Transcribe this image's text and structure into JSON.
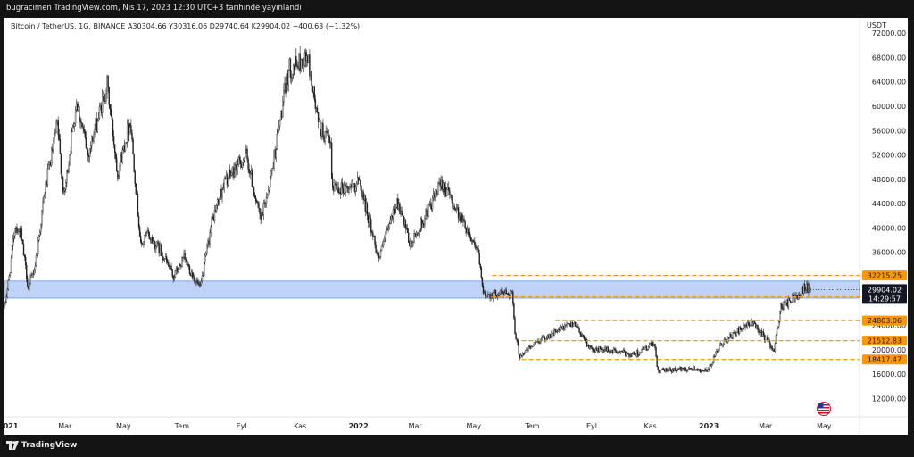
{
  "header": {
    "publish_info": "bugracimen TradingView.com, Nis 17, 2023 12:30 UTC+3 tarihinde yayınlandı"
  },
  "legend": {
    "text": "Bitcoin / TetherUS, 1G, BINANCE  A30304.66  Y30316.06  D29740.64  K29904.02  −400.63 (−1.32%)"
  },
  "footer": {
    "brand": "TradingView"
  },
  "colors": {
    "candle": "#222222",
    "level_line": "#ff9800",
    "zone_fill": "#a9c4f5",
    "zone_border": "#7fa6ee",
    "label_bg": "#ff9800",
    "price_label_bg": "#131722"
  },
  "chart_data": {
    "type": "candlestick",
    "currency_label": "USDT",
    "y_ticks": [
      "72000.00",
      "68000.00",
      "64000.00",
      "60000.00",
      "56000.00",
      "52000.00",
      "48000.00",
      "44000.00",
      "40000.00",
      "36000.00",
      "24000.00",
      "20000.00",
      "16000.00",
      "12000.00"
    ],
    "ylim": [
      9000,
      74500
    ],
    "x_ticks": [
      {
        "label": "2021",
        "date": "2021-01-01",
        "bold": true
      },
      {
        "label": "Mar",
        "date": "2021-03-01",
        "bold": false
      },
      {
        "label": "May",
        "date": "2021-05-01",
        "bold": false
      },
      {
        "label": "Tem",
        "date": "2021-07-01",
        "bold": false
      },
      {
        "label": "Eyl",
        "date": "2021-09-01",
        "bold": false
      },
      {
        "label": "Kas",
        "date": "2021-11-01",
        "bold": false
      },
      {
        "label": "2022",
        "date": "2022-01-01",
        "bold": true
      },
      {
        "label": "Mar",
        "date": "2022-03-01",
        "bold": false
      },
      {
        "label": "May",
        "date": "2022-05-01",
        "bold": false
      },
      {
        "label": "Tem",
        "date": "2022-07-01",
        "bold": false
      },
      {
        "label": "Eyl",
        "date": "2022-09-01",
        "bold": false
      },
      {
        "label": "Kas",
        "date": "2022-11-01",
        "bold": false
      },
      {
        "label": "2023",
        "date": "2023-01-01",
        "bold": true
      },
      {
        "label": "Mar",
        "date": "2023-03-01",
        "bold": false
      },
      {
        "label": "May",
        "date": "2023-05-01",
        "bold": false
      }
    ],
    "xlim": [
      "2020-12-28",
      "2023-06-07"
    ],
    "last_date": "2023-04-17",
    "close_path": [
      [
        "2020-12-28",
        27000
      ],
      [
        "2021-01-02",
        32000
      ],
      [
        "2021-01-08",
        40500
      ],
      [
        "2021-01-14",
        39000
      ],
      [
        "2021-01-22",
        30000
      ],
      [
        "2021-01-29",
        34000
      ],
      [
        "2021-02-08",
        46000
      ],
      [
        "2021-02-21",
        57000
      ],
      [
        "2021-02-28",
        45000
      ],
      [
        "2021-03-13",
        61000
      ],
      [
        "2021-03-25",
        52000
      ],
      [
        "2021-04-14",
        63500
      ],
      [
        "2021-04-25",
        49000
      ],
      [
        "2021-05-08",
        58000
      ],
      [
        "2021-05-19",
        37000
      ],
      [
        "2021-05-26",
        39000
      ],
      [
        "2021-06-10",
        36000
      ],
      [
        "2021-06-22",
        32000
      ],
      [
        "2021-07-03",
        35000
      ],
      [
        "2021-07-20",
        30000
      ],
      [
        "2021-08-01",
        41000
      ],
      [
        "2021-08-14",
        47500
      ],
      [
        "2021-08-22",
        49000
      ],
      [
        "2021-09-06",
        52000
      ],
      [
        "2021-09-21",
        41000
      ],
      [
        "2021-10-01",
        48000
      ],
      [
        "2021-10-20",
        66000
      ],
      [
        "2021-11-09",
        68000
      ],
      [
        "2021-11-20",
        57000
      ],
      [
        "2021-12-03",
        53500
      ],
      [
        "2021-12-04",
        47000
      ],
      [
        "2021-12-20",
        46500
      ],
      [
        "2022-01-02",
        47500
      ],
      [
        "2022-01-22",
        35000
      ],
      [
        "2022-02-10",
        44500
      ],
      [
        "2022-02-24",
        37000
      ],
      [
        "2022-03-29",
        47500
      ],
      [
        "2022-04-20",
        41000
      ],
      [
        "2022-05-05",
        36500
      ],
      [
        "2022-05-11",
        29000
      ],
      [
        "2022-06-10",
        29500
      ],
      [
        "2022-06-13",
        22500
      ],
      [
        "2022-06-18",
        19000
      ],
      [
        "2022-07-07",
        21500
      ],
      [
        "2022-08-14",
        24500
      ],
      [
        "2022-08-31",
        20000
      ],
      [
        "2022-09-15",
        20000
      ],
      [
        "2022-10-15",
        19200
      ],
      [
        "2022-11-05",
        21000
      ],
      [
        "2022-11-09",
        16500
      ],
      [
        "2022-12-15",
        17000
      ],
      [
        "2022-12-31",
        16500
      ],
      [
        "2023-01-14",
        21000
      ],
      [
        "2023-01-31",
        23000
      ],
      [
        "2023-02-16",
        24500
      ],
      [
        "2023-03-10",
        20000
      ],
      [
        "2023-03-17",
        27000
      ],
      [
        "2023-03-31",
        28500
      ],
      [
        "2023-04-11",
        30300
      ],
      [
        "2023-04-17",
        29904
      ]
    ],
    "levels": [
      {
        "value": 32215.25,
        "label": "32215.25",
        "from": "2022-05-20"
      },
      {
        "value": 28691.12,
        "label": "28691.12",
        "from": "2022-05-20"
      },
      {
        "value": 24803.06,
        "label": "24803.06",
        "from": "2022-07-25"
      },
      {
        "value": 21512.83,
        "label": "21512.83",
        "from": "2022-06-20"
      },
      {
        "value": 18417.47,
        "label": "18417.47",
        "from": "2022-06-20"
      }
    ],
    "zone": {
      "top": 31300,
      "bottom": 28500,
      "from": "2020-12-28"
    },
    "current": {
      "price": "29904.02",
      "countdown": "14:29:57",
      "value": 29904.02
    }
  }
}
